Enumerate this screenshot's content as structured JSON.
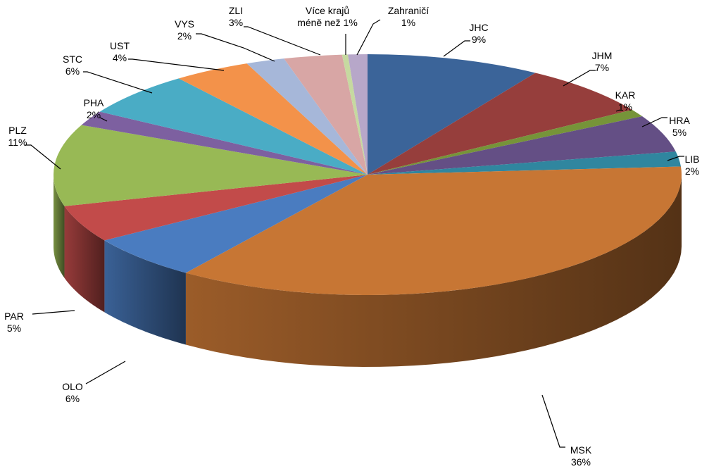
{
  "chart_data": {
    "type": "pie",
    "style": "3d",
    "title": "",
    "start": "top, clockwise",
    "series": [
      {
        "slices": [
          {
            "label": "JHC",
            "value": 9,
            "value_label": "9%",
            "color": "#3b6499"
          },
          {
            "label": "JHM",
            "value": 7,
            "value_label": "7%",
            "color": "#963e3c"
          },
          {
            "label": "KAR",
            "value": 1,
            "value_label": "1%",
            "color": "#769439"
          },
          {
            "label": "HRA",
            "value": 5,
            "value_label": "5%",
            "color": "#644f85"
          },
          {
            "label": "LIB",
            "value": 2,
            "value_label": "2%",
            "color": "#30869f"
          },
          {
            "label": "MSK",
            "value": 36,
            "value_label": "36%",
            "color": "#c77634"
          },
          {
            "label": "OLO",
            "value": 6,
            "value_label": "6%",
            "color": "#4a7cc0"
          },
          {
            "label": "PAR",
            "value": 5,
            "value_label": "5%",
            "color": "#c24b4a"
          },
          {
            "label": "PLZ",
            "value": 11,
            "value_label": "11%",
            "color": "#98b955"
          },
          {
            "label": "PHA",
            "value": 2,
            "value_label": "2%",
            "color": "#7d60a0"
          },
          {
            "label": "STC",
            "value": 6,
            "value_label": "6%",
            "color": "#4aacc5"
          },
          {
            "label": "UST",
            "value": 4,
            "value_label": "4%",
            "color": "#f3924a"
          },
          {
            "label": "VYS",
            "value": 2,
            "value_label": "2%",
            "color": "#a6b7d9"
          },
          {
            "label": "ZLI",
            "value": 3,
            "value_label": "3%",
            "color": "#d8a6a5"
          },
          {
            "label": "Více krajů",
            "value": 0.3,
            "value_label": "méně než 1%",
            "color": "#c6d9a0"
          },
          {
            "label": "Zahraničí",
            "value": 1,
            "value_label": "1%",
            "color": "#b7a7c9"
          }
        ]
      }
    ]
  }
}
